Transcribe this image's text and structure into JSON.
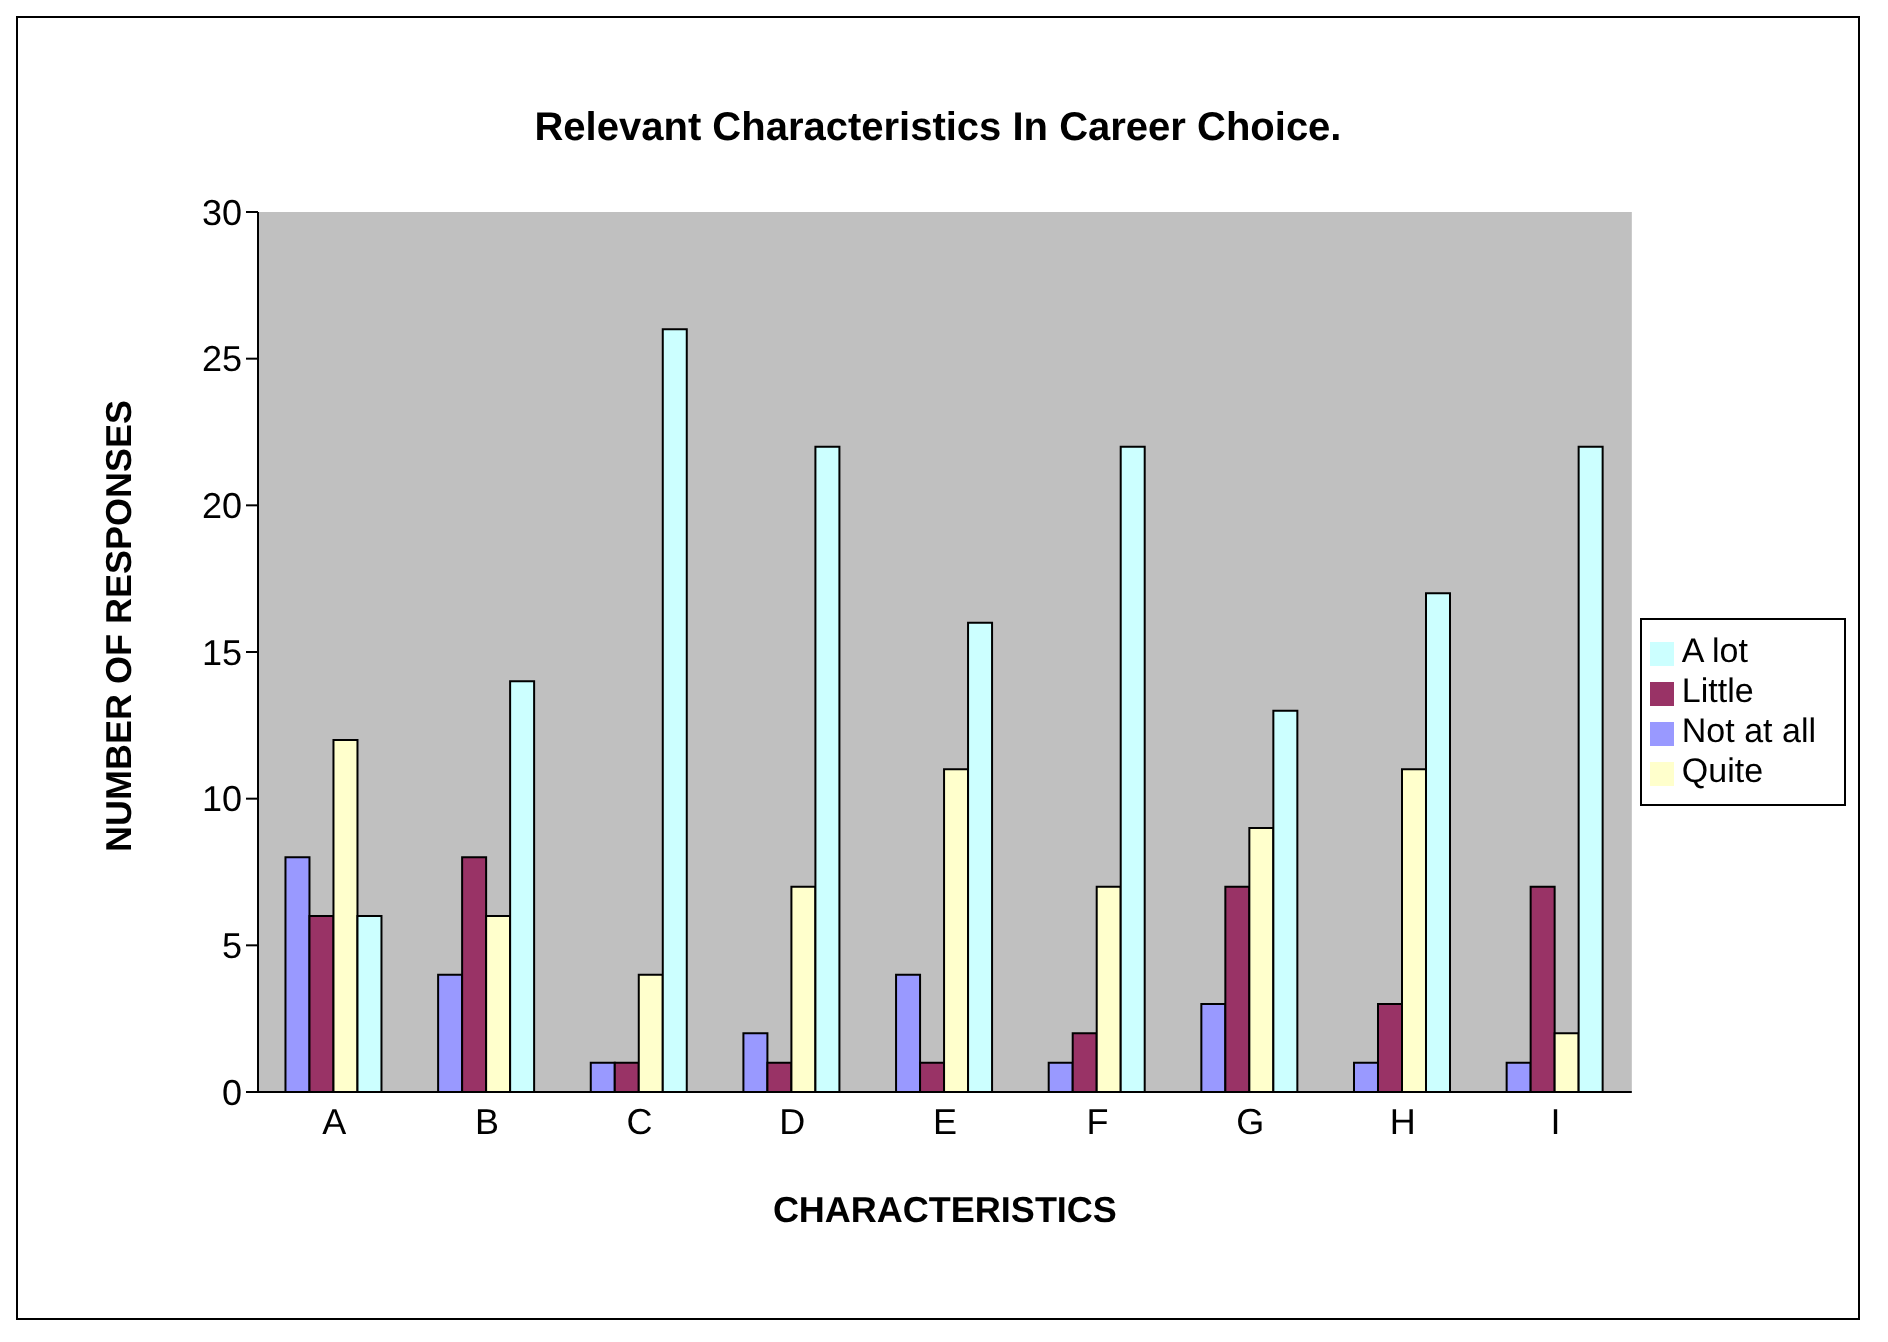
{
  "chart_data": {
    "type": "bar",
    "title": "Relevant Characteristics In Career Choice.",
    "xlabel": "CHARACTERISTICS",
    "ylabel": "NUMBER OF RESPONSES",
    "categories": [
      "A",
      "B",
      "C",
      "D",
      "E",
      "F",
      "G",
      "H",
      "I"
    ],
    "series": [
      {
        "name": "Not at all",
        "color": "#9999ff",
        "values": [
          8,
          4,
          1,
          2,
          4,
          1,
          3,
          1,
          1
        ]
      },
      {
        "name": "Little",
        "color": "#993366",
        "values": [
          6,
          8,
          1,
          1,
          1,
          2,
          7,
          3,
          7
        ]
      },
      {
        "name": "Quite",
        "color": "#ffffcc",
        "values": [
          12,
          6,
          4,
          7,
          11,
          7,
          9,
          11,
          2
        ]
      },
      {
        "name": "A lot",
        "color": "#ccffff",
        "values": [
          6,
          14,
          26,
          22,
          16,
          22,
          13,
          17,
          22
        ]
      }
    ],
    "ylim": [
      0,
      30
    ],
    "yticks": [
      0,
      5,
      10,
      15,
      20,
      25,
      30
    ],
    "grid": false,
    "legend": "right"
  }
}
